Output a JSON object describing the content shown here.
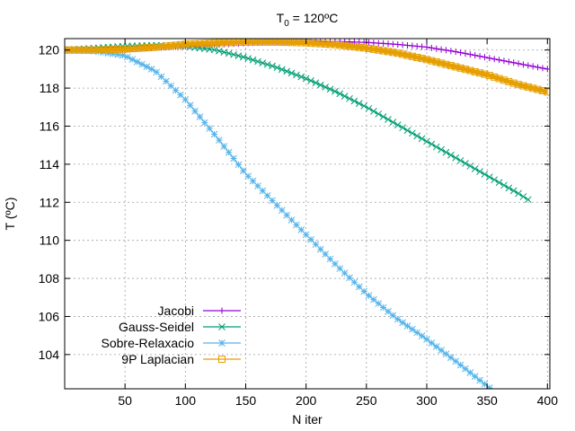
{
  "chart_data": {
    "type": "line",
    "title": {
      "main": "T",
      "sub": "0",
      "rest": " = 120ºC"
    },
    "xlabel": "N iter",
    "ylabel": "T (ºC)",
    "xlim": [
      0,
      402
    ],
    "ylim": [
      102.2,
      120.6
    ],
    "xticks": [
      50,
      100,
      150,
      200,
      250,
      300,
      350,
      400
    ],
    "yticks": [
      104,
      106,
      108,
      110,
      112,
      114,
      116,
      118,
      120
    ],
    "grid": true,
    "legend_position": "bottom-left",
    "series": [
      {
        "name": "Jacobi",
        "color": "#9400d3",
        "marker": "plus",
        "x": [
          0,
          25,
          50,
          75,
          100,
          125,
          150,
          175,
          200,
          225,
          250,
          275,
          300,
          325,
          350,
          375,
          400
        ],
        "y": [
          120.0,
          120.0,
          120.05,
          120.12,
          120.2,
          120.28,
          120.36,
          120.42,
          120.45,
          120.45,
          120.4,
          120.3,
          120.15,
          119.9,
          119.6,
          119.3,
          119.0
        ]
      },
      {
        "name": "Gauss-Seidel",
        "color": "#009e73",
        "marker": "cross",
        "x": [
          0,
          25,
          50,
          75,
          100,
          125,
          150,
          175,
          200,
          225,
          250,
          275,
          300,
          325,
          350,
          375,
          385
        ],
        "y": [
          120.0,
          120.1,
          120.2,
          120.25,
          120.2,
          120.0,
          119.6,
          119.1,
          118.5,
          117.8,
          117.0,
          116.1,
          115.2,
          114.3,
          113.4,
          112.5,
          112.1
        ]
      },
      {
        "name": "Sobre-Relaxacio",
        "color": "#56b4e9",
        "marker": "star",
        "x": [
          0,
          25,
          50,
          75,
          100,
          125,
          150,
          175,
          200,
          225,
          250,
          275,
          300,
          325,
          355
        ],
        "y": [
          120.0,
          119.95,
          119.7,
          118.9,
          117.4,
          115.5,
          113.5,
          111.9,
          110.3,
          108.7,
          107.2,
          105.9,
          104.8,
          103.6,
          102.1
        ]
      },
      {
        "name": "9P Laplacian",
        "color": "#e69f00",
        "marker": "square",
        "x": [
          0,
          25,
          50,
          75,
          100,
          125,
          150,
          175,
          200,
          225,
          250,
          275,
          300,
          325,
          350,
          375,
          400
        ],
        "y": [
          120.0,
          120.0,
          120.05,
          120.15,
          120.3,
          120.38,
          120.42,
          120.42,
          120.38,
          120.28,
          120.1,
          119.85,
          119.5,
          119.1,
          118.7,
          118.2,
          117.8
        ]
      }
    ]
  }
}
